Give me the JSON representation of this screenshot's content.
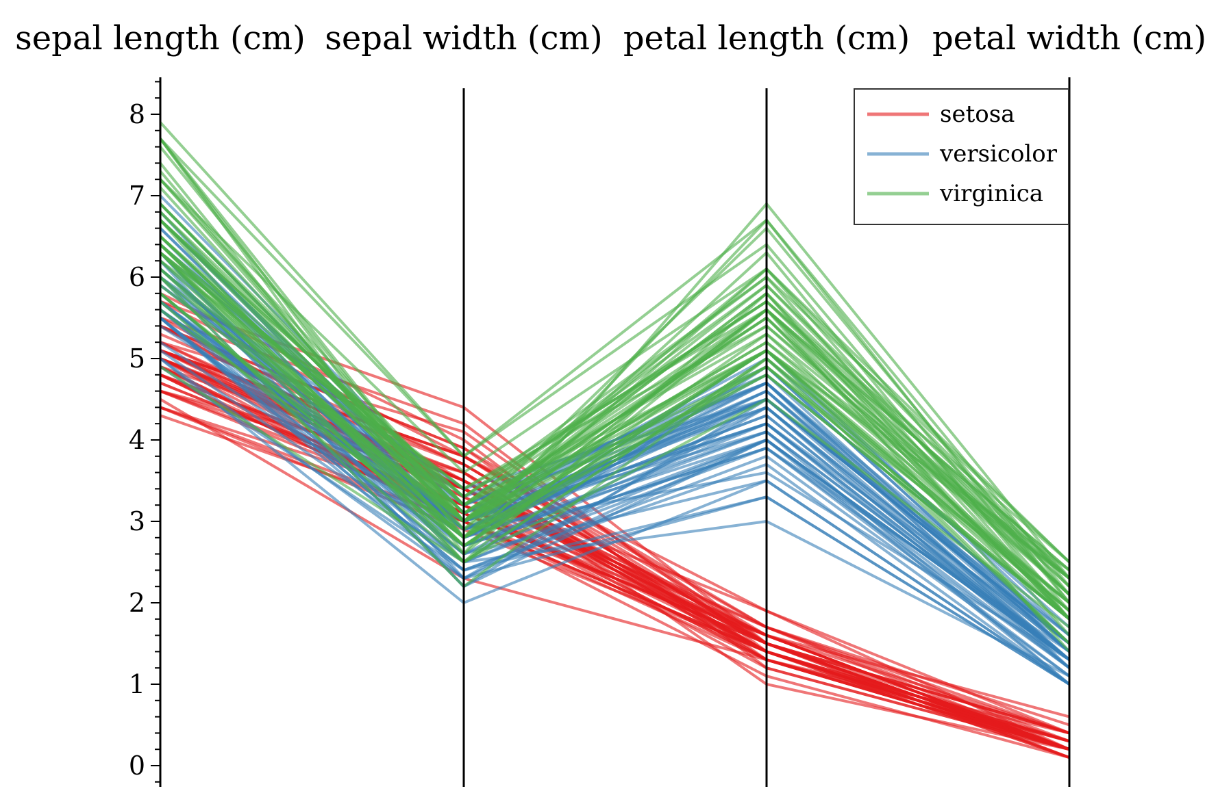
{
  "chart_data": {
    "type": "parallel-coordinates",
    "axes": [
      "sepal length (cm)",
      "sepal width (cm)",
      "petal length (cm)",
      "petal width (cm)"
    ],
    "y_ticks": [
      0,
      1,
      2,
      3,
      4,
      5,
      6,
      7,
      8
    ],
    "ylim": [
      -0.25,
      8.45
    ],
    "grid": false,
    "legend_placement": "top-right",
    "series": [
      {
        "name": "setosa",
        "color": "#e41a1c",
        "lines": [
          [
            5.1,
            3.5,
            1.4,
            0.2
          ],
          [
            4.9,
            3.0,
            1.4,
            0.2
          ],
          [
            4.7,
            3.2,
            1.3,
            0.2
          ],
          [
            4.6,
            3.1,
            1.5,
            0.2
          ],
          [
            5.0,
            3.6,
            1.4,
            0.2
          ],
          [
            5.4,
            3.9,
            1.7,
            0.4
          ],
          [
            4.6,
            3.4,
            1.4,
            0.3
          ],
          [
            5.0,
            3.4,
            1.5,
            0.2
          ],
          [
            4.4,
            2.9,
            1.4,
            0.2
          ],
          [
            4.9,
            3.1,
            1.5,
            0.1
          ],
          [
            5.4,
            3.7,
            1.5,
            0.2
          ],
          [
            4.8,
            3.4,
            1.6,
            0.2
          ],
          [
            4.8,
            3.0,
            1.4,
            0.1
          ],
          [
            4.3,
            3.0,
            1.1,
            0.1
          ],
          [
            5.8,
            4.0,
            1.2,
            0.2
          ],
          [
            5.7,
            4.4,
            1.5,
            0.4
          ],
          [
            5.4,
            3.9,
            1.3,
            0.4
          ],
          [
            5.1,
            3.5,
            1.4,
            0.3
          ],
          [
            5.7,
            3.8,
            1.7,
            0.3
          ],
          [
            5.1,
            3.8,
            1.5,
            0.3
          ],
          [
            5.4,
            3.4,
            1.7,
            0.2
          ],
          [
            5.1,
            3.7,
            1.5,
            0.4
          ],
          [
            4.6,
            3.6,
            1.0,
            0.2
          ],
          [
            5.1,
            3.3,
            1.7,
            0.5
          ],
          [
            4.8,
            3.4,
            1.9,
            0.2
          ],
          [
            5.0,
            3.0,
            1.6,
            0.2
          ],
          [
            5.0,
            3.4,
            1.6,
            0.4
          ],
          [
            5.2,
            3.5,
            1.5,
            0.2
          ],
          [
            5.2,
            3.4,
            1.4,
            0.2
          ],
          [
            4.7,
            3.2,
            1.6,
            0.2
          ],
          [
            4.8,
            3.1,
            1.6,
            0.2
          ],
          [
            5.4,
            3.4,
            1.5,
            0.4
          ],
          [
            5.2,
            4.1,
            1.5,
            0.1
          ],
          [
            5.5,
            4.2,
            1.4,
            0.2
          ],
          [
            4.9,
            3.1,
            1.5,
            0.2
          ],
          [
            5.0,
            3.2,
            1.2,
            0.2
          ],
          [
            5.5,
            3.5,
            1.3,
            0.2
          ],
          [
            4.9,
            3.6,
            1.4,
            0.1
          ],
          [
            4.4,
            3.0,
            1.3,
            0.2
          ],
          [
            5.1,
            3.4,
            1.5,
            0.2
          ],
          [
            5.0,
            3.5,
            1.3,
            0.3
          ],
          [
            4.5,
            2.3,
            1.3,
            0.3
          ],
          [
            4.4,
            3.2,
            1.3,
            0.2
          ],
          [
            5.0,
            3.5,
            1.6,
            0.6
          ],
          [
            5.1,
            3.8,
            1.9,
            0.4
          ],
          [
            4.8,
            3.0,
            1.4,
            0.3
          ],
          [
            5.1,
            3.8,
            1.6,
            0.2
          ],
          [
            4.6,
            3.2,
            1.4,
            0.2
          ],
          [
            5.3,
            3.7,
            1.5,
            0.2
          ],
          [
            5.0,
            3.3,
            1.4,
            0.2
          ]
        ]
      },
      {
        "name": "versicolor",
        "color": "#377eb8",
        "lines": [
          [
            7.0,
            3.2,
            4.7,
            1.4
          ],
          [
            6.4,
            3.2,
            4.5,
            1.5
          ],
          [
            6.9,
            3.1,
            4.9,
            1.5
          ],
          [
            5.5,
            2.3,
            4.0,
            1.3
          ],
          [
            6.5,
            2.8,
            4.6,
            1.5
          ],
          [
            5.7,
            2.8,
            4.5,
            1.3
          ],
          [
            6.3,
            3.3,
            4.7,
            1.6
          ],
          [
            4.9,
            2.4,
            3.3,
            1.0
          ],
          [
            6.6,
            2.9,
            4.6,
            1.3
          ],
          [
            5.2,
            2.7,
            3.9,
            1.4
          ],
          [
            5.0,
            2.0,
            3.5,
            1.0
          ],
          [
            5.9,
            3.0,
            4.2,
            1.5
          ],
          [
            6.0,
            2.2,
            4.0,
            1.0
          ],
          [
            6.1,
            2.9,
            4.7,
            1.4
          ],
          [
            5.6,
            2.9,
            3.6,
            1.3
          ],
          [
            6.7,
            3.1,
            4.4,
            1.4
          ],
          [
            5.6,
            3.0,
            4.5,
            1.5
          ],
          [
            5.8,
            2.7,
            4.1,
            1.0
          ],
          [
            6.2,
            2.2,
            4.5,
            1.5
          ],
          [
            5.6,
            2.5,
            3.9,
            1.1
          ],
          [
            5.9,
            3.2,
            4.8,
            1.8
          ],
          [
            6.1,
            2.8,
            4.0,
            1.3
          ],
          [
            6.3,
            2.5,
            4.9,
            1.5
          ],
          [
            6.1,
            2.8,
            4.7,
            1.2
          ],
          [
            6.4,
            2.9,
            4.3,
            1.3
          ],
          [
            6.6,
            3.0,
            4.4,
            1.4
          ],
          [
            6.8,
            2.8,
            4.8,
            1.4
          ],
          [
            6.7,
            3.0,
            5.0,
            1.7
          ],
          [
            6.0,
            2.9,
            4.5,
            1.5
          ],
          [
            5.7,
            2.6,
            3.5,
            1.0
          ],
          [
            5.5,
            2.4,
            3.8,
            1.1
          ],
          [
            5.5,
            2.4,
            3.7,
            1.0
          ],
          [
            5.8,
            2.7,
            3.9,
            1.2
          ],
          [
            6.0,
            2.7,
            5.1,
            1.6
          ],
          [
            5.4,
            3.0,
            4.5,
            1.5
          ],
          [
            6.0,
            3.4,
            4.5,
            1.6
          ],
          [
            6.7,
            3.1,
            4.7,
            1.5
          ],
          [
            6.3,
            2.3,
            4.4,
            1.3
          ],
          [
            5.6,
            3.0,
            4.1,
            1.3
          ],
          [
            5.5,
            2.5,
            4.0,
            1.3
          ],
          [
            5.5,
            2.6,
            4.4,
            1.2
          ],
          [
            6.1,
            3.0,
            4.6,
            1.4
          ],
          [
            5.8,
            2.6,
            4.0,
            1.2
          ],
          [
            5.0,
            2.3,
            3.3,
            1.0
          ],
          [
            5.6,
            2.7,
            4.2,
            1.3
          ],
          [
            5.7,
            3.0,
            4.2,
            1.2
          ],
          [
            5.7,
            2.9,
            4.2,
            1.3
          ],
          [
            6.2,
            2.9,
            4.3,
            1.3
          ],
          [
            5.1,
            2.5,
            3.0,
            1.1
          ],
          [
            5.7,
            2.8,
            4.1,
            1.3
          ]
        ]
      },
      {
        "name": "virginica",
        "color": "#4daf4a",
        "lines": [
          [
            6.3,
            3.3,
            6.0,
            2.5
          ],
          [
            5.8,
            2.7,
            5.1,
            1.9
          ],
          [
            7.1,
            3.0,
            5.9,
            2.1
          ],
          [
            6.3,
            2.9,
            5.6,
            1.8
          ],
          [
            6.5,
            3.0,
            5.8,
            2.2
          ],
          [
            7.6,
            3.0,
            6.6,
            2.1
          ],
          [
            4.9,
            2.5,
            4.5,
            1.7
          ],
          [
            7.3,
            2.9,
            6.3,
            1.8
          ],
          [
            6.7,
            2.5,
            5.8,
            1.8
          ],
          [
            7.2,
            3.6,
            6.1,
            2.5
          ],
          [
            6.5,
            3.2,
            5.1,
            2.0
          ],
          [
            6.4,
            2.7,
            5.3,
            1.9
          ],
          [
            6.8,
            3.0,
            5.5,
            2.1
          ],
          [
            5.7,
            2.5,
            5.0,
            2.0
          ],
          [
            5.8,
            2.8,
            5.1,
            2.4
          ],
          [
            6.4,
            3.2,
            5.3,
            2.3
          ],
          [
            6.5,
            3.0,
            5.5,
            1.8
          ],
          [
            7.7,
            3.8,
            6.7,
            2.2
          ],
          [
            7.7,
            2.6,
            6.9,
            2.3
          ],
          [
            6.0,
            2.2,
            5.0,
            1.5
          ],
          [
            6.9,
            3.2,
            5.7,
            2.3
          ],
          [
            5.6,
            2.8,
            4.9,
            2.0
          ],
          [
            7.7,
            2.8,
            6.7,
            2.0
          ],
          [
            6.3,
            2.7,
            4.9,
            1.8
          ],
          [
            6.7,
            3.3,
            5.7,
            2.1
          ],
          [
            7.2,
            3.2,
            6.0,
            1.8
          ],
          [
            6.2,
            2.8,
            4.8,
            1.8
          ],
          [
            6.1,
            3.0,
            4.9,
            1.8
          ],
          [
            6.4,
            2.8,
            5.6,
            2.1
          ],
          [
            7.2,
            3.0,
            5.8,
            1.6
          ],
          [
            7.4,
            2.8,
            6.1,
            1.9
          ],
          [
            7.9,
            3.8,
            6.4,
            2.0
          ],
          [
            6.4,
            2.8,
            5.6,
            2.2
          ],
          [
            6.3,
            2.8,
            5.1,
            1.5
          ],
          [
            6.1,
            2.6,
            5.6,
            1.4
          ],
          [
            7.7,
            3.0,
            6.1,
            2.3
          ],
          [
            6.3,
            3.4,
            5.6,
            2.4
          ],
          [
            6.4,
            3.1,
            5.5,
            1.8
          ],
          [
            6.0,
            3.0,
            4.8,
            1.8
          ],
          [
            6.9,
            3.1,
            5.4,
            2.1
          ],
          [
            6.7,
            3.1,
            5.6,
            2.4
          ],
          [
            6.9,
            3.1,
            5.1,
            2.3
          ],
          [
            5.8,
            2.7,
            5.1,
            1.9
          ],
          [
            6.8,
            3.2,
            5.9,
            2.3
          ],
          [
            6.7,
            3.3,
            5.7,
            2.5
          ],
          [
            6.7,
            3.0,
            5.2,
            2.3
          ],
          [
            6.3,
            2.5,
            5.0,
            1.9
          ],
          [
            6.5,
            3.0,
            5.2,
            2.0
          ],
          [
            6.2,
            3.4,
            5.4,
            2.3
          ],
          [
            5.9,
            3.0,
            5.1,
            1.8
          ]
        ]
      }
    ]
  }
}
